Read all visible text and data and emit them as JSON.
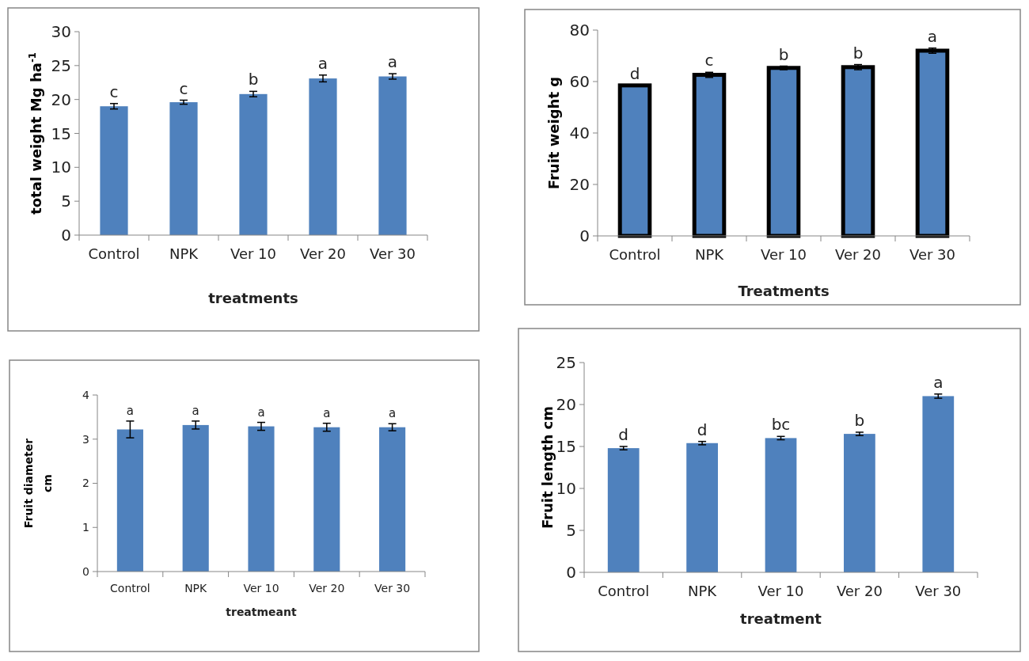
{
  "chart_data": [
    {
      "type": "bar",
      "categories": [
        "Control",
        "NPK",
        "Ver 10",
        "Ver 20",
        "Ver 30"
      ],
      "values": [
        19.0,
        19.6,
        20.8,
        23.1,
        23.4
      ],
      "errors": [
        0.4,
        0.3,
        0.4,
        0.5,
        0.4
      ],
      "color": "#4f81bd",
      "ylim": [
        0,
        30
      ],
      "yticks": [
        0,
        5,
        10,
        15,
        20,
        25,
        30
      ],
      "xlabel": "treatments",
      "ylabel": "total weight Mg ha$^{-1}$",
      "grid": false,
      "annotations": [
        {
          "text": "c",
          "x": "Control",
          "y": 19.4
        },
        {
          "text": "c",
          "x": "NPK",
          "y": 19.9
        },
        {
          "text": "b",
          "x": "Ver 10",
          "y": 21.2
        },
        {
          "text": "a",
          "x": "Ver 20",
          "y": 23.6
        },
        {
          "text": "a",
          "x": "Ver 30",
          "y": 23.8
        }
      ]
    },
    {
      "type": "bar",
      "categories": [
        "Control",
        "NPK",
        "Ver 10",
        "Ver 20",
        "Ver 30"
      ],
      "values": [
        58.5,
        62.6,
        65.3,
        65.6,
        72.0
      ],
      "errors": [
        null,
        1.0,
        0.7,
        1.0,
        1.0
      ],
      "color": "#4f81bd",
      "ylim": [
        0,
        80
      ],
      "yticks": [
        0,
        20,
        40,
        60,
        80
      ],
      "xlabel": "Treatments",
      "ylabel": "Fruit weight g",
      "grid": false,
      "annotations": [
        {
          "text": "d",
          "x": "Control",
          "y": 58.5
        },
        {
          "text": "c",
          "x": "NPK",
          "y": 63.6
        },
        {
          "text": "b",
          "x": "Ver 10",
          "y": 66.0
        },
        {
          "text": "b",
          "x": "Ver 20",
          "y": 66.6
        },
        {
          "text": "a",
          "x": "Ver 30",
          "y": 73.0
        }
      ]
    },
    {
      "type": "bar",
      "categories": [
        "Control",
        "NPK",
        "Ver 10",
        "Ver 20",
        "Ver 30"
      ],
      "values": [
        3.22,
        3.32,
        3.29,
        3.27,
        3.27
      ],
      "errors": [
        0.19,
        0.09,
        0.09,
        0.09,
        0.08
      ],
      "color": "#4f81bd",
      "ylim": [
        0,
        4
      ],
      "yticks": [
        0,
        1,
        2,
        3,
        4
      ],
      "xlabel": "treatmeant",
      "ylabel": "Fruit diameter\ncm",
      "grid": false,
      "annotations": [
        {
          "text": "a",
          "x": "Control",
          "y": 3.41
        },
        {
          "text": "a",
          "x": "NPK",
          "y": 3.41
        },
        {
          "text": "a",
          "x": "Ver 10",
          "y": 3.38
        },
        {
          "text": "a",
          "x": "Ver 20",
          "y": 3.36
        },
        {
          "text": "a",
          "x": "Ver 30",
          "y": 3.35
        }
      ]
    },
    {
      "type": "bar",
      "categories": [
        "Control",
        "NPK",
        "Ver 10",
        "Ver 20",
        "Ver 30"
      ],
      "values": [
        14.8,
        15.4,
        16.0,
        16.5,
        21.0
      ],
      "errors": [
        0.2,
        0.2,
        0.2,
        0.2,
        0.25
      ],
      "color": "#4f81bd",
      "ylim": [
        0,
        25
      ],
      "yticks": [
        0,
        5,
        10,
        15,
        20,
        25
      ],
      "xlabel": "treatment",
      "ylabel": "Fruit length cm",
      "grid": false,
      "annotations": [
        {
          "text": "d",
          "x": "Control",
          "y": 15.0
        },
        {
          "text": "d",
          "x": "NPK",
          "y": 15.6
        },
        {
          "text": "bc",
          "x": "Ver 10",
          "y": 16.2
        },
        {
          "text": "b",
          "x": "Ver 20",
          "y": 16.7
        },
        {
          "text": "a",
          "x": "Ver 30",
          "y": 21.25
        }
      ]
    }
  ]
}
